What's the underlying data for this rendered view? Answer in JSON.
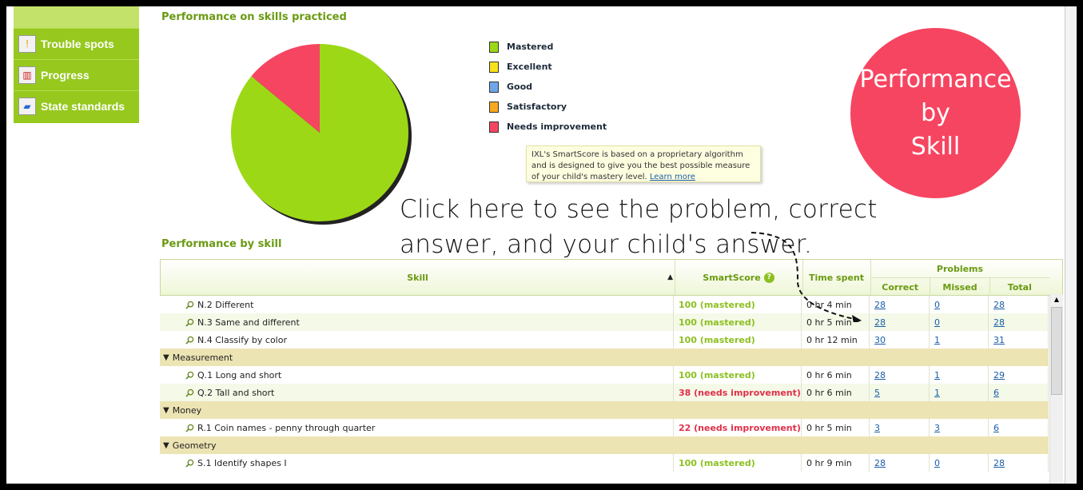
{
  "nav": {
    "items": [
      {
        "label": "Trouble spots",
        "icon": "warning-icon"
      },
      {
        "label": "Progress",
        "icon": "chart-icon"
      },
      {
        "label": "State standards",
        "icon": "map-icon"
      }
    ]
  },
  "performance_practiced": {
    "title": "Performance on skills practiced"
  },
  "legend": [
    {
      "label": "Mastered",
      "color": "#9cd816"
    },
    {
      "label": "Excellent",
      "color": "#f8e21a"
    },
    {
      "label": "Good",
      "color": "#6ea6e8"
    },
    {
      "label": "Satisfactory",
      "color": "#f6a81e"
    },
    {
      "label": "Needs improvement",
      "color": "#f64561"
    }
  ],
  "chart_data": {
    "type": "pie",
    "slices": [
      {
        "label": "Mastered",
        "value": 86,
        "color": "#9cd816"
      },
      {
        "label": "Needs improvement",
        "value": 14,
        "color": "#f64561"
      }
    ]
  },
  "tooltip": {
    "text": "IXL's SmartScore is based on a proprietary algorithm and is designed to give you the best possible measure of your child's mastery level.",
    "link": "Learn more"
  },
  "badge": {
    "line1": "Performance",
    "line2": "by",
    "line3": "Skill"
  },
  "annotation": {
    "line1": "Click here to see the problem, correct",
    "line2": "answer, and your child's answer."
  },
  "performance_by_skill": {
    "title": "Performance by skill"
  },
  "table": {
    "headers": {
      "skill": "Skill",
      "smartscore": "SmartScore",
      "time": "Time spent",
      "problems": "Problems",
      "correct": "Correct",
      "missed": "Missed",
      "total": "Total"
    },
    "rows": [
      {
        "type": "skill",
        "skill": "N.2 Different",
        "score": "100 (mastered)",
        "status": "m",
        "time": "0 hr 4 min",
        "correct": "28",
        "missed": "0",
        "total": "28"
      },
      {
        "type": "skill",
        "skill": "N.3 Same and different",
        "score": "100 (mastered)",
        "status": "m",
        "time": "0 hr 5 min",
        "correct": "28",
        "missed": "0",
        "total": "28"
      },
      {
        "type": "skill",
        "skill": "N.4 Classify by color",
        "score": "100 (mastered)",
        "status": "m",
        "time": "0 hr 12 min",
        "correct": "30",
        "missed": "1",
        "total": "31"
      },
      {
        "type": "group",
        "skill": "Measurement"
      },
      {
        "type": "skill",
        "skill": "Q.1 Long and short",
        "score": "100 (mastered)",
        "status": "m",
        "time": "0 hr 6 min",
        "correct": "28",
        "missed": "1",
        "total": "29"
      },
      {
        "type": "skill",
        "skill": "Q.2 Tall and short",
        "score": "38 (needs improvement)",
        "status": "n",
        "time": "0 hr 6 min",
        "correct": "5",
        "missed": "1",
        "total": "6"
      },
      {
        "type": "group",
        "skill": "Money"
      },
      {
        "type": "skill",
        "skill": "R.1 Coin names - penny through quarter",
        "score": "22 (needs improvement)",
        "status": "n",
        "time": "0 hr 5 min",
        "correct": "3",
        "missed": "3",
        "total": "6"
      },
      {
        "type": "group",
        "skill": "Geometry"
      },
      {
        "type": "skill",
        "skill": "S.1 Identify shapes I",
        "score": "100 (mastered)",
        "status": "m",
        "time": "0 hr 9 min",
        "correct": "28",
        "missed": "0",
        "total": "28"
      }
    ]
  }
}
